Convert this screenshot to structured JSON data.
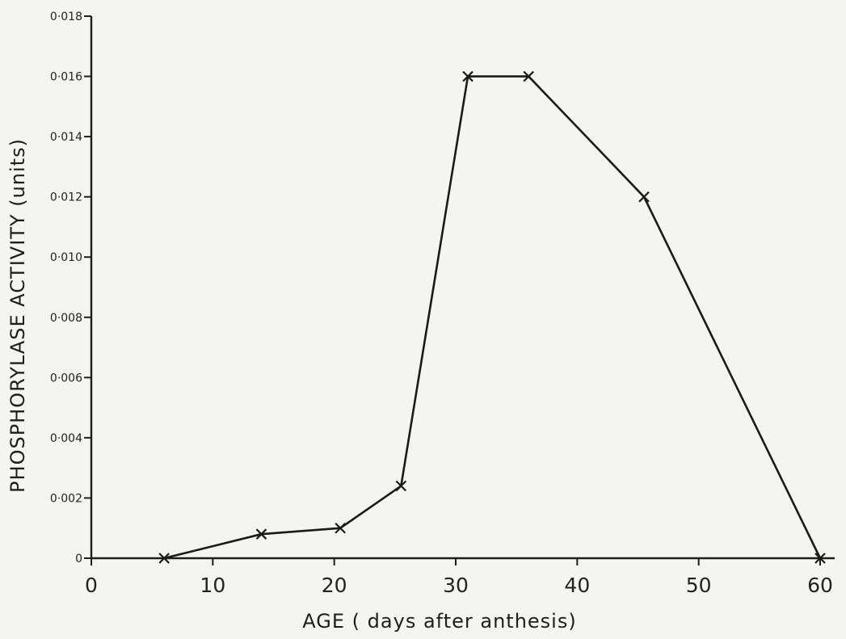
{
  "chart_data": {
    "type": "line",
    "title": "",
    "xlabel": "AGE ( days after anthesis)",
    "ylabel": "PHOSPHORYLASE ACTIVITY (units)",
    "xlim": [
      0,
      60
    ],
    "ylim": [
      0,
      0.018
    ],
    "xticks": [
      0,
      10,
      20,
      30,
      40,
      50,
      60
    ],
    "xtick_labels": [
      "0",
      "10",
      "20",
      "30",
      "40",
      "50",
      "60"
    ],
    "yticks": [
      0,
      0.002,
      0.004,
      0.006,
      0.008,
      0.01,
      0.012,
      0.014,
      0.016,
      0.018
    ],
    "ytick_labels": [
      "0",
      "0·002",
      "0·004",
      "0·006",
      "0·008",
      "0·010",
      "0·012",
      "0·014",
      "0·016",
      "0·018"
    ],
    "grid": false,
    "legend": "none",
    "marker": "x",
    "line_color": "#1a1a1a",
    "series": [
      {
        "x": [
          6,
          14,
          20.5,
          25.5,
          31,
          36,
          45.5,
          60
        ],
        "y": [
          0,
          0.0008,
          0.001,
          0.0024,
          0.016,
          0.016,
          0.012,
          0
        ]
      }
    ]
  }
}
